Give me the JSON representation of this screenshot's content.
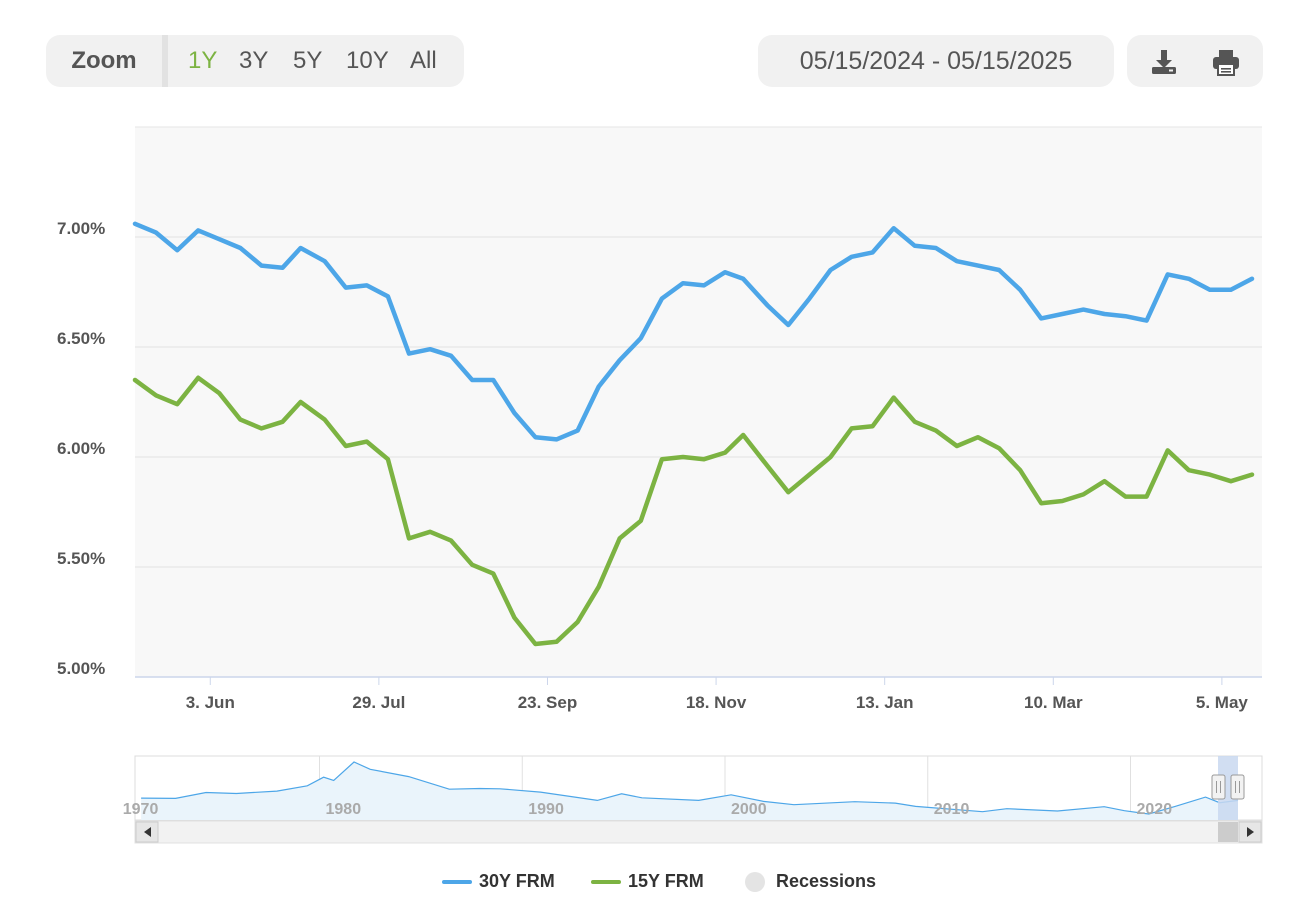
{
  "toolbar": {
    "zoom_label": "Zoom",
    "zoom_options": [
      "1Y",
      "3Y",
      "5Y",
      "10Y",
      "All"
    ],
    "active_zoom": "1Y",
    "date_range": "05/15/2024 - 05/15/2025",
    "download_icon": "download-icon",
    "print_icon": "print-icon"
  },
  "colors": {
    "series_30y": "#4da6e8",
    "series_15y": "#7cb342",
    "active": "#7cb342",
    "plot_bg": "#f8f8f8"
  },
  "chart_data": {
    "type": "line",
    "y_ticks": [
      "5.00%",
      "5.50%",
      "6.00%",
      "6.50%",
      "7.00%"
    ],
    "ylim": [
      5.0,
      7.5
    ],
    "x_ticks": [
      "3. Jun",
      "29. Jul",
      "23. Sep",
      "18. Nov",
      "13. Jan",
      "10. Mar",
      "5. May"
    ],
    "x": [
      "2024-05-16",
      "2024-05-23",
      "2024-05-30",
      "2024-06-06",
      "2024-06-13",
      "2024-06-20",
      "2024-06-27",
      "2024-07-03",
      "2024-07-11",
      "2024-07-18",
      "2024-07-25",
      "2024-08-01",
      "2024-08-08",
      "2024-08-15",
      "2024-08-22",
      "2024-08-29",
      "2024-09-05",
      "2024-09-12",
      "2024-09-19",
      "2024-09-26",
      "2024-10-03",
      "2024-10-10",
      "2024-10-17",
      "2024-10-24",
      "2024-10-31",
      "2024-11-07",
      "2024-11-14",
      "2024-11-21",
      "2024-11-27",
      "2024-12-05",
      "2024-12-12",
      "2024-12-19",
      "2024-12-26",
      "2025-01-02",
      "2025-01-09",
      "2025-01-16",
      "2025-01-23",
      "2025-01-30",
      "2025-02-06",
      "2025-02-13",
      "2025-02-20",
      "2025-02-27",
      "2025-03-06",
      "2025-03-13",
      "2025-03-20",
      "2025-03-27",
      "2025-04-03",
      "2025-04-10",
      "2025-04-17",
      "2025-04-24",
      "2025-05-01",
      "2025-05-08",
      "2025-05-15"
    ],
    "grid": true,
    "legend_position": "bottom-center",
    "series": [
      {
        "name": "30Y FRM",
        "values": [
          7.02,
          6.94,
          7.03,
          6.99,
          6.95,
          6.87,
          6.86,
          6.95,
          6.89,
          6.77,
          6.78,
          6.73,
          6.47,
          6.49,
          6.46,
          6.35,
          6.35,
          6.2,
          6.09,
          6.08,
          6.12,
          6.32,
          6.44,
          6.54,
          6.72,
          6.79,
          6.78,
          6.84,
          6.81,
          6.69,
          6.6,
          6.72,
          6.85,
          6.91,
          6.93,
          7.04,
          6.96,
          6.95,
          6.89,
          6.87,
          6.85,
          6.76,
          6.63,
          6.65,
          6.67,
          6.65,
          6.64,
          6.62,
          6.83,
          6.81,
          6.76,
          6.76,
          6.81
        ]
      },
      {
        "name": "15Y FRM",
        "values": [
          6.28,
          6.24,
          6.36,
          6.29,
          6.17,
          6.13,
          6.16,
          6.25,
          6.17,
          6.05,
          6.07,
          5.99,
          5.63,
          5.66,
          5.62,
          5.51,
          5.47,
          5.27,
          5.15,
          5.16,
          5.25,
          5.41,
          5.63,
          5.71,
          5.99,
          6.0,
          5.99,
          6.02,
          6.1,
          5.96,
          5.84,
          5.92,
          6.0,
          6.13,
          6.14,
          6.27,
          6.16,
          6.12,
          6.05,
          6.09,
          6.04,
          5.94,
          5.79,
          5.8,
          5.83,
          5.89,
          5.82,
          5.82,
          6.03,
          5.94,
          5.92,
          5.89,
          5.92
        ]
      }
    ]
  },
  "navigator": {
    "decade_labels": [
      "1970",
      "1980",
      "1990",
      "2000",
      "2010",
      "2020"
    ],
    "x_range": [
      1971,
      2025.5
    ],
    "values": [
      [
        1971.3,
        7.5
      ],
      [
        1973,
        7.4
      ],
      [
        1974.5,
        9.2
      ],
      [
        1976,
        8.9
      ],
      [
        1978,
        9.6
      ],
      [
        1979.5,
        11.2
      ],
      [
        1980.3,
        13.8
      ],
      [
        1980.8,
        12.8
      ],
      [
        1981.8,
        18.4
      ],
      [
        1982.6,
        16.2
      ],
      [
        1984.5,
        14.0
      ],
      [
        1986.5,
        10.2
      ],
      [
        1988,
        10.4
      ],
      [
        1989,
        10.3
      ],
      [
        1991,
        9.3
      ],
      [
        1993.8,
        6.8
      ],
      [
        1995,
        8.8
      ],
      [
        1996,
        7.6
      ],
      [
        1998.8,
        6.8
      ],
      [
        2000.4,
        8.5
      ],
      [
        2002,
        6.5
      ],
      [
        2003.5,
        5.5
      ],
      [
        2006.5,
        6.4
      ],
      [
        2008.5,
        6.0
      ],
      [
        2009.5,
        5.0
      ],
      [
        2012.8,
        3.4
      ],
      [
        2014,
        4.3
      ],
      [
        2016.5,
        3.6
      ],
      [
        2018.8,
        4.9
      ],
      [
        2019.8,
        3.7
      ],
      [
        2021,
        2.7
      ],
      [
        2022.3,
        5.0
      ],
      [
        2023.8,
        7.8
      ],
      [
        2024.5,
        6.1
      ],
      [
        2025.4,
        6.8
      ]
    ]
  },
  "legend": {
    "series_30y": "30Y FRM",
    "series_15y": "15Y FRM",
    "recessions": "Recessions"
  }
}
